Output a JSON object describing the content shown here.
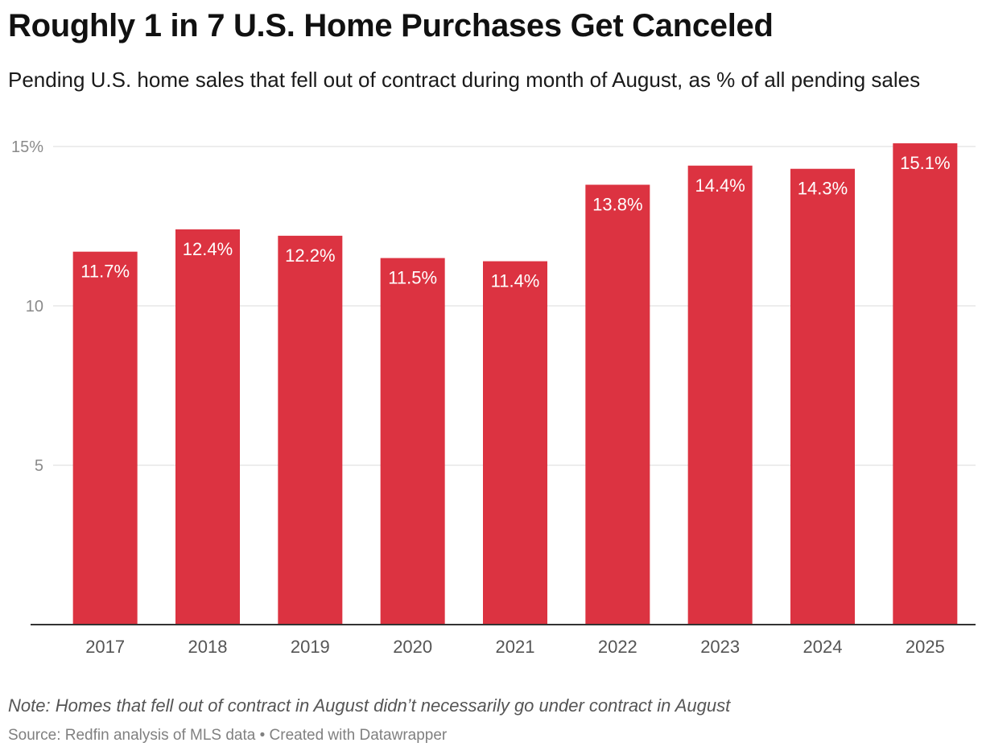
{
  "header": {
    "title": "Roughly 1 in 7 U.S. Home Purchases Get Canceled",
    "subtitle": "Pending U.S. home sales that fell out of contract during month of August, as % of all pending sales"
  },
  "footer": {
    "note": "Note: Homes that fell out of contract in August didn’t necessarily go under contract in August",
    "source": "Source: Redfin analysis of MLS data • Created with Datawrapper"
  },
  "colors": {
    "bar": "#dc3341",
    "grid": "#e2e2e2",
    "axis": "#333333"
  },
  "chart_data": {
    "type": "bar",
    "title": "Roughly 1 in 7 U.S. Home Purchases Get Canceled",
    "subtitle": "Pending U.S. home sales that fell out of contract during month of August, as % of all pending sales",
    "xlabel": "",
    "ylabel": "",
    "categories": [
      "2017",
      "2018",
      "2019",
      "2020",
      "2021",
      "2022",
      "2023",
      "2024",
      "2025"
    ],
    "values": [
      11.7,
      12.4,
      12.2,
      11.5,
      11.4,
      13.8,
      14.4,
      14.3,
      15.1
    ],
    "value_labels": [
      "11.7%",
      "12.4%",
      "12.2%",
      "11.5%",
      "11.4%",
      "13.8%",
      "14.4%",
      "14.3%",
      "15.1%"
    ],
    "ylim": [
      0,
      15
    ],
    "yticks": [
      5,
      10,
      15
    ],
    "ytick_labels": [
      "5",
      "10",
      "15%"
    ],
    "grid": true,
    "legend": "none"
  }
}
